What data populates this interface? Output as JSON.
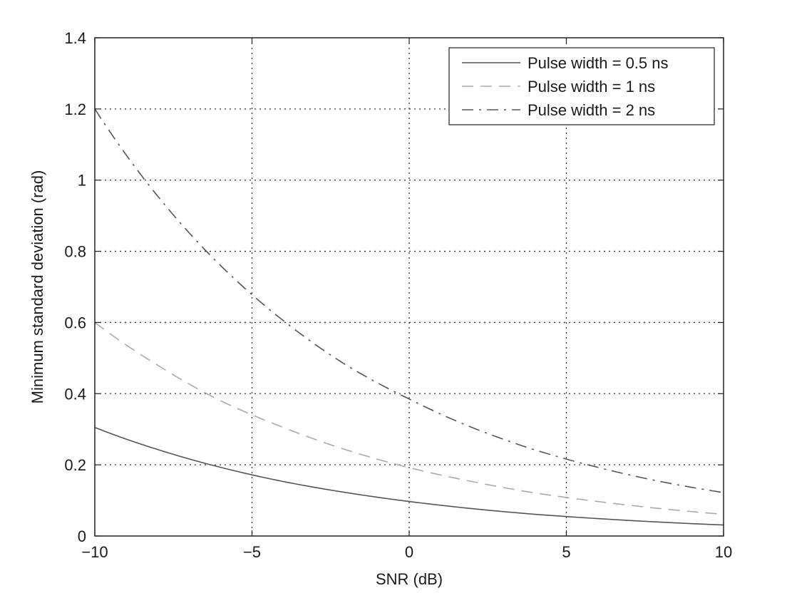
{
  "chart_data": {
    "type": "line",
    "title": "",
    "xlabel": "SNR (dB)",
    "ylabel": "Minimum standard deviation (rad)",
    "xlim": [
      -10,
      10
    ],
    "ylim": [
      0,
      1.4
    ],
    "xticks": [
      -10,
      -5,
      0,
      5,
      10
    ],
    "xtick_labels": [
      "−10",
      "−5",
      "0",
      "5",
      "10"
    ],
    "yticks": [
      0,
      0.2,
      0.4,
      0.6,
      0.8,
      1,
      1.2,
      1.4
    ],
    "ytick_labels": [
      "0",
      "0.2",
      "0.4",
      "0.6",
      "0.8",
      "1",
      "1.2",
      "1.4"
    ],
    "grid": true,
    "legend_position": "top-right",
    "x": [
      -10,
      -8,
      -6,
      -4,
      -2,
      0,
      2,
      4,
      6,
      8,
      10
    ],
    "series": [
      {
        "name": "Pulse width = 0.5 ns",
        "style": "solid",
        "color": "#555555",
        "values": [
          0.305,
          0.243,
          0.193,
          0.153,
          0.122,
          0.097,
          0.077,
          0.061,
          0.049,
          0.039,
          0.031
        ]
      },
      {
        "name": "Pulse width = 1 ns",
        "style": "dashed",
        "color": "#aaaaaa",
        "values": [
          0.6,
          0.48,
          0.38,
          0.305,
          0.242,
          0.192,
          0.153,
          0.121,
          0.097,
          0.077,
          0.061
        ]
      },
      {
        "name": "Pulse width = 2 ns",
        "style": "dashdot",
        "color": "#555555",
        "values": [
          1.2,
          0.955,
          0.76,
          0.605,
          0.48,
          0.385,
          0.305,
          0.242,
          0.193,
          0.153,
          0.122
        ]
      }
    ]
  }
}
